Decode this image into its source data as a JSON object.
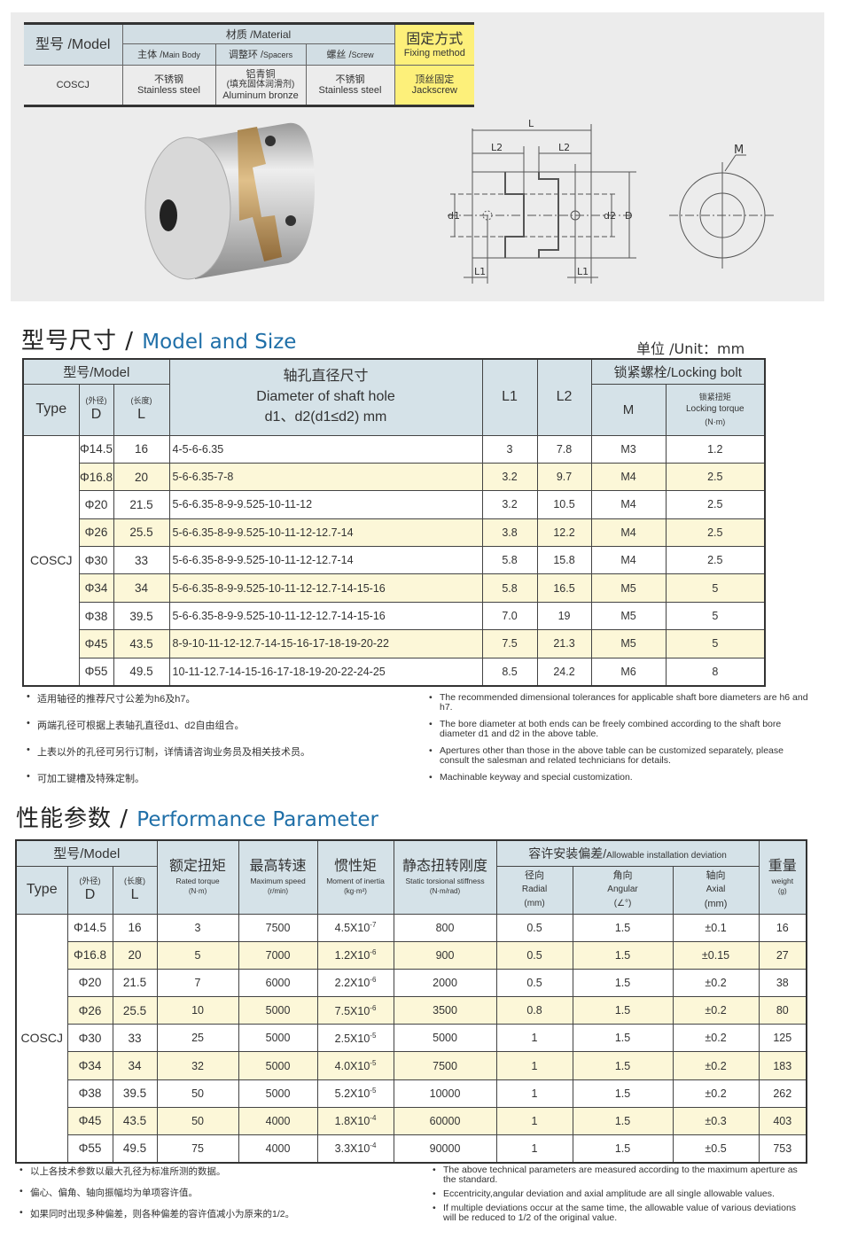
{
  "materials_table": {
    "model_header": "型号 /Model",
    "material_header": "材质 /Material",
    "main_body_header_cn": "主体 /",
    "main_body_header_en": "Main Body",
    "spacers_header_cn": "调整环 /",
    "spacers_header_en": "Spacers",
    "screw_header_cn": "螺丝 /",
    "screw_header_en": "Screw",
    "fixing_header_cn": "固定方式",
    "fixing_header_en": "Fixing method",
    "model": "COSCJ",
    "main_body_cn": "不锈钢",
    "main_body_en": "Stainless steel",
    "spacers_cn": "铝青铜",
    "spacers_note": "(填充固体润滑剂)",
    "spacers_en": "Aluminum bronze",
    "screw_cn": "不锈钢",
    "screw_en": "Stainless steel",
    "fixing_cn": "顶丝固定",
    "fixing_en": "Jackscrew",
    "fixing_color": "#fdf07a",
    "header_color": "#d2dee4"
  },
  "drawing": {
    "labels": {
      "L": "L",
      "L2a": "L2",
      "L2b": "L2",
      "d1": "d1",
      "d2": "d2",
      "D": "D",
      "L1a": "L1",
      "L1b": "L1",
      "M": "M"
    }
  },
  "size_section": {
    "title_cn": "型号尺寸 /",
    "title_en": "Model and Size",
    "unit": "单位 /Unit：mm",
    "headers": {
      "model": "型号/Model",
      "type": "Type",
      "d_cn": "(外径)",
      "d": "D",
      "l_cn": "(长度)",
      "l": "L",
      "dia_cn": "轴孔直径尺寸",
      "dia_en": "Diameter of shaft hole",
      "dia_unit": "d1、d2(d1≤d2) mm",
      "l1": "L1",
      "l2": "L2",
      "bolt": "锁紧螺栓/Locking bolt",
      "m": "M",
      "torque_cn": "锁紧扭矩",
      "torque_en": "Locking torque",
      "torque_unit": "(N·m)"
    },
    "type_value": "COSCJ",
    "rows": [
      {
        "D": "Φ14.5",
        "L": "16",
        "dia": "4-5-6-6.35",
        "L1": "3",
        "L2": "7.8",
        "M": "M3",
        "torque": "1.2"
      },
      {
        "D": "Φ16.8",
        "L": "20",
        "dia": "5-6-6.35-7-8",
        "L1": "3.2",
        "L2": "9.7",
        "M": "M4",
        "torque": "2.5"
      },
      {
        "D": "Φ20",
        "L": "21.5",
        "dia": "5-6-6.35-8-9-9.525-10-11-12",
        "L1": "3.2",
        "L2": "10.5",
        "M": "M4",
        "torque": "2.5"
      },
      {
        "D": "Φ26",
        "L": "25.5",
        "dia": "5-6-6.35-8-9-9.525-10-11-12-12.7-14",
        "L1": "3.8",
        "L2": "12.2",
        "M": "M4",
        "torque": "2.5"
      },
      {
        "D": "Φ30",
        "L": "33",
        "dia": "5-6-6.35-8-9-9.525-10-11-12-12.7-14",
        "L1": "5.8",
        "L2": "15.8",
        "M": "M4",
        "torque": "2.5"
      },
      {
        "D": "Φ34",
        "L": "34",
        "dia": "5-6-6.35-8-9-9.525-10-11-12-12.7-14-15-16",
        "L1": "5.8",
        "L2": "16.5",
        "M": "M5",
        "torque": "5"
      },
      {
        "D": "Φ38",
        "L": "39.5",
        "dia": "5-6-6.35-8-9-9.525-10-11-12-12.7-14-15-16",
        "L1": "7.0",
        "L2": "19",
        "M": "M5",
        "torque": "5"
      },
      {
        "D": "Φ45",
        "L": "43.5",
        "dia": "8-9-10-11-12-12.7-14-15-16-17-18-19-20-22",
        "L1": "7.5",
        "L2": "21.3",
        "M": "M5",
        "torque": "5"
      },
      {
        "D": "Φ55",
        "L": "49.5",
        "dia": "10-11-12.7-14-15-16-17-18-19-20-22-24-25",
        "L1": "8.5",
        "L2": "24.2",
        "M": "M6",
        "torque": "8"
      }
    ],
    "notes_cn": [
      "适用轴径的推荐尺寸公差为h6及h7。",
      "两端孔径可根据上表轴孔直径d1、d2自由组合。",
      "上表以外的孔径可另行订制，详情请咨询业务员及相关技术员。",
      "可加工键槽及特殊定制。"
    ],
    "notes_en": [
      "The recommended dimensional tolerances for applicable shaft bore diameters are h6 and h7.",
      "The bore diameter at both ends can be freely combined according to the shaft bore diameter d1 and d2 in the above table.",
      "Apertures other than those in the above table can be customized separately, please consult the salesman and related technicians for details.",
      "Machinable keyway and special customization."
    ]
  },
  "perf_section": {
    "title_cn": "性能参数 /",
    "title_en": "Performance Parameter",
    "headers": {
      "model": "型号/Model",
      "type": "Type",
      "d_cn": "(外径)",
      "d": "D",
      "l_cn": "(长度)",
      "l": "L",
      "torque_cn": "额定扭矩",
      "torque_en": "Rated torque",
      "torque_unit": "(N·m)",
      "speed_cn": "最高转速",
      "speed_en": "Maximum speed",
      "speed_unit": "(r/min)",
      "inertia_cn": "惯性矩",
      "inertia_en": "Moment of inertia",
      "inertia_unit": "(kg·m²)",
      "stiff_cn": "静态扭转刚度",
      "stiff_en": "Static torsional stiffness",
      "stiff_unit": "(N·m/rad)",
      "dev_cn": "容许安装偏差/",
      "dev_en": "Allowable installation deviation",
      "radial_cn": "径向",
      "radial_en": "Radial",
      "radial_unit": "(mm)",
      "angular_cn": "角向",
      "angular_en": "Angular",
      "angular_unit": "(∠°)",
      "axial_cn": "轴向",
      "axial_en": "Axial",
      "axial_unit": "(mm)",
      "weight_cn": "重量",
      "weight_en": "weight",
      "weight_unit": "(g)"
    },
    "type_value": "COSCJ",
    "rows": [
      {
        "D": "Φ14.5",
        "L": "16",
        "torque": "3",
        "speed": "7500",
        "inertia": "4.5X10",
        "exp": "-7",
        "stiff": "800",
        "radial": "0.5",
        "angular": "1.5",
        "axial": "±0.1",
        "weight": "16"
      },
      {
        "D": "Φ16.8",
        "L": "20",
        "torque": "5",
        "speed": "7000",
        "inertia": "1.2X10",
        "exp": "-6",
        "stiff": "900",
        "radial": "0.5",
        "angular": "1.5",
        "axial": "±0.15",
        "weight": "27"
      },
      {
        "D": "Φ20",
        "L": "21.5",
        "torque": "7",
        "speed": "6000",
        "inertia": "2.2X10",
        "exp": "-6",
        "stiff": "2000",
        "radial": "0.5",
        "angular": "1.5",
        "axial": "±0.2",
        "weight": "38"
      },
      {
        "D": "Φ26",
        "L": "25.5",
        "torque": "10",
        "speed": "5000",
        "inertia": "7.5X10",
        "exp": "-6",
        "stiff": "3500",
        "radial": "0.8",
        "angular": "1.5",
        "axial": "±0.2",
        "weight": "80"
      },
      {
        "D": "Φ30",
        "L": "33",
        "torque": "25",
        "speed": "5000",
        "inertia": "2.5X10",
        "exp": "-5",
        "stiff": "5000",
        "radial": "1",
        "angular": "1.5",
        "axial": "±0.2",
        "weight": "125"
      },
      {
        "D": "Φ34",
        "L": "34",
        "torque": "32",
        "speed": "5000",
        "inertia": "4.0X10",
        "exp": "-5",
        "stiff": "7500",
        "radial": "1",
        "angular": "1.5",
        "axial": "±0.2",
        "weight": "183"
      },
      {
        "D": "Φ38",
        "L": "39.5",
        "torque": "50",
        "speed": "5000",
        "inertia": "5.2X10",
        "exp": "-5",
        "stiff": "10000",
        "radial": "1",
        "angular": "1.5",
        "axial": "±0.2",
        "weight": "262"
      },
      {
        "D": "Φ45",
        "L": "43.5",
        "torque": "50",
        "speed": "4000",
        "inertia": "1.8X10",
        "exp": "-4",
        "stiff": "60000",
        "radial": "1",
        "angular": "1.5",
        "axial": "±0.3",
        "weight": "403"
      },
      {
        "D": "Φ55",
        "L": "49.5",
        "torque": "75",
        "speed": "4000",
        "inertia": "3.3X10",
        "exp": "-4",
        "stiff": "90000",
        "radial": "1",
        "angular": "1.5",
        "axial": "±0.5",
        "weight": "753"
      }
    ],
    "notes_cn": [
      "以上各技术参数以最大孔径为标准所测的数据。",
      "偏心、偏角、轴向振幅均为单项容许值。",
      "如果同时出现多种偏差，则各种偏差的容许值减小为原来的1/2。"
    ],
    "notes_en": [
      "The above technical parameters are measured according to the maximum aperture as the standard.",
      "Eccentricity,angular deviation and axial amplitude are all single allowable values.",
      "If multiple deviations occur at the same time, the allowable value of various deviations will be reduced to 1/2 of the original value."
    ]
  },
  "colors": {
    "accent_blue": "#1f6fa8",
    "header_bg": "#d5e2e8",
    "stripe_yellow": "#fcf7d8"
  }
}
